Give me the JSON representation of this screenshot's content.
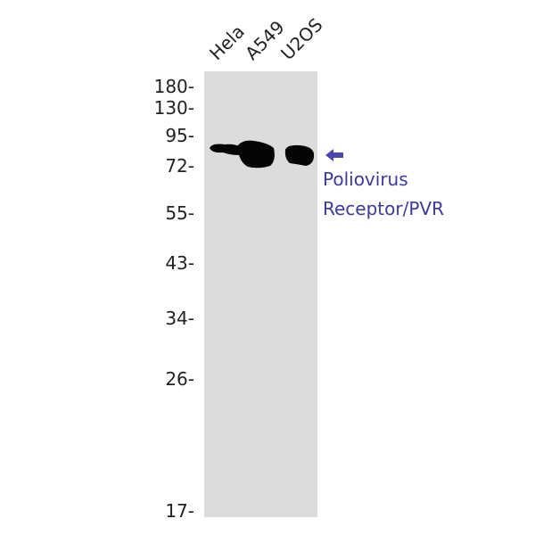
{
  "lanes": [
    "Hela",
    "A549",
    "U2OS"
  ],
  "markers": [
    "180-",
    "130-",
    "95-",
    "72-",
    "55-",
    "43-",
    "34-",
    "26-",
    "17-"
  ],
  "target": {
    "line1": "Poliovirus",
    "line2": "Receptor/PVR",
    "arrow": "left-arrow-icon",
    "color": "#3b3a9c"
  },
  "membrane_color": "#dcdcdc"
}
